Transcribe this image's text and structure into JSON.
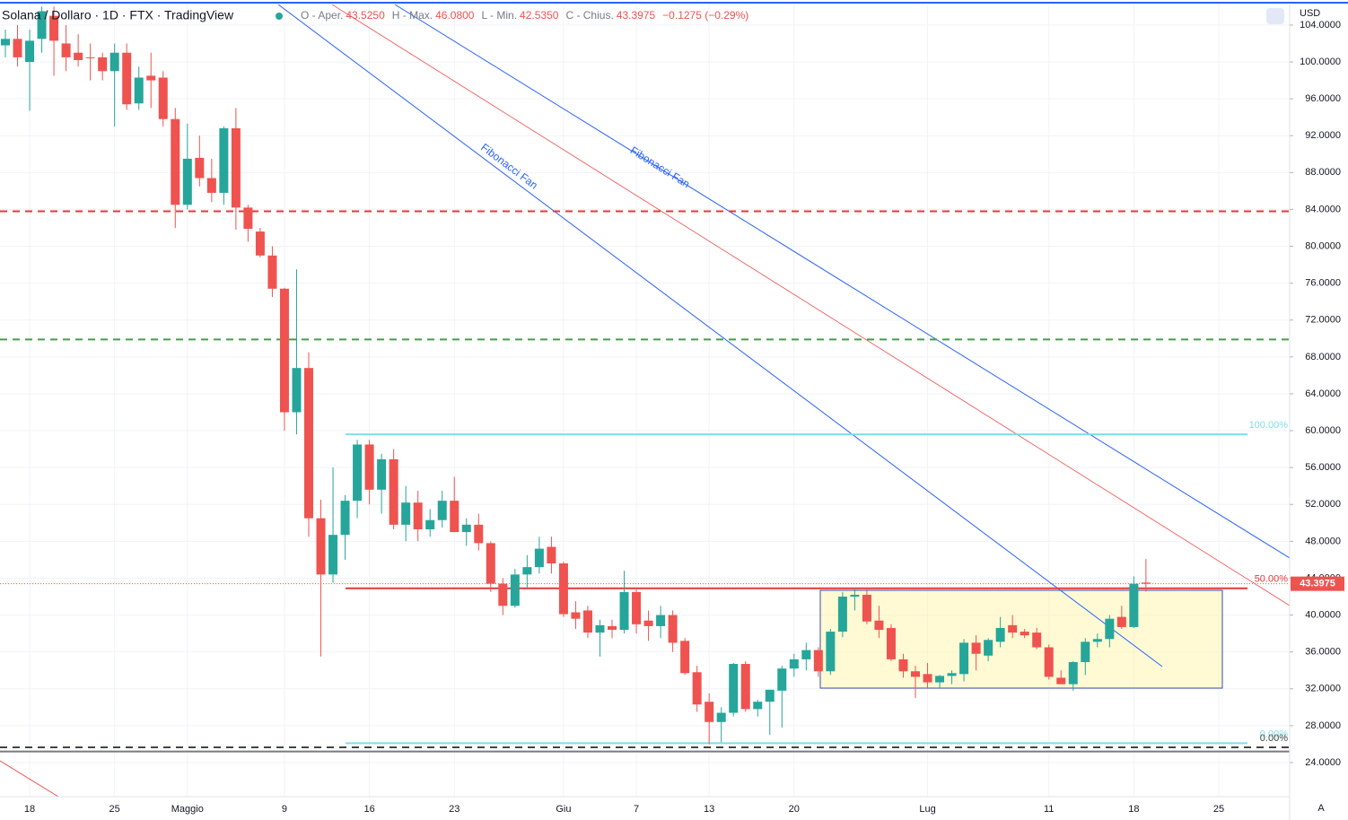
{
  "chart_data": {
    "type": "candlestick",
    "title": "Solana / Dollaro · 1D · FTX · TradingView",
    "readout": [
      {
        "label": "O - Aper.",
        "value": "43.5250"
      },
      {
        "label": "H - Max.",
        "value": "46.0800"
      },
      {
        "label": "L - Min.",
        "value": "42.5350"
      },
      {
        "label": "C - Chius.",
        "value": "43.3975"
      }
    ],
    "change": "−0.1275 (−0.29%)",
    "currency": "USD",
    "scale_mode": "A",
    "categories": [
      null,
      null,
      "18",
      null,
      null,
      null,
      null,
      null,
      null,
      "25",
      null,
      null,
      null,
      null,
      null,
      "Maggio",
      null,
      null,
      null,
      null,
      null,
      null,
      null,
      "9",
      null,
      null,
      null,
      null,
      null,
      null,
      "16",
      null,
      null,
      null,
      null,
      null,
      null,
      "23",
      null,
      null,
      null,
      null,
      null,
      null,
      null,
      null,
      "Giu",
      null,
      null,
      null,
      null,
      null,
      "7",
      null,
      null,
      null,
      null,
      null,
      "13",
      null,
      null,
      null,
      null,
      null,
      null,
      "20",
      null,
      null,
      null,
      null,
      null,
      null,
      null,
      null,
      null,
      null,
      "Lug",
      null,
      null,
      null,
      null,
      null,
      null,
      null,
      null,
      null,
      "11",
      null,
      null,
      null,
      null,
      null,
      null,
      "18",
      null,
      null,
      null,
      null,
      null,
      null,
      "25"
    ],
    "open": [
      101.8,
      102.5,
      100,
      102.5,
      105,
      102,
      101,
      100.5,
      100.5,
      99,
      101,
      95.5,
      98.5,
      98.3,
      93.8,
      84.5,
      89.6,
      87.4,
      85.8,
      92.8,
      84.2,
      81.6,
      79,
      75.4,
      62,
      66.8,
      50.5,
      44.4,
      48.7,
      52.4,
      58.5,
      53.6,
      56.9,
      49.8,
      52.2,
      49.3,
      50.3,
      52.4,
      49,
      49.8,
      47.8,
      43.4,
      41,
      44.4,
      45.2,
      47.4,
      45.6,
      40.3,
      40.5,
      38.1,
      38.8,
      38.4,
      42.5,
      39.4,
      38.8,
      40,
      37.2,
      33.8,
      30.6,
      28.4,
      29.4,
      34.7,
      29.8,
      30.6,
      31.8,
      34.2,
      35.2,
      36.2,
      33.9,
      38.2,
      42,
      42.2,
      39.4,
      38.6,
      35.2,
      33.9,
      33.6,
      32.7,
      33.4,
      33.6,
      37,
      35.6,
      37.1,
      38.9,
      38.2,
      38.1,
      36.5,
      33.2,
      32.5,
      34.9,
      37.1,
      37.4,
      39.8,
      38.7,
      43.525,
      null,
      null,
      null,
      null,
      null,
      null
    ],
    "high": [
      103.5,
      104,
      103.5,
      106,
      106,
      104,
      103,
      102,
      101,
      102,
      102,
      99.5,
      101,
      99,
      95,
      93.3,
      92,
      89.5,
      93,
      95,
      84.5,
      82,
      80,
      75.5,
      77.5,
      68.5,
      52.5,
      56,
      53,
      59,
      59,
      57.5,
      58,
      54,
      53.5,
      51.5,
      53.5,
      55,
      50.5,
      51,
      48,
      44,
      45,
      46.5,
      48.5,
      48.5,
      45.8,
      41.5,
      41,
      39.5,
      39.5,
      44.8,
      43,
      40.5,
      41,
      40.5,
      37.5,
      34.5,
      31.5,
      30,
      34.8,
      35,
      30.8,
      31.8,
      34.5,
      35.8,
      37,
      36.5,
      38.5,
      42.5,
      43,
      43,
      41,
      39,
      35.8,
      34.5,
      34.8,
      33.5,
      34,
      37.4,
      37.8,
      37.5,
      39.8,
      40,
      38.5,
      38.6,
      36.8,
      34,
      35,
      37.5,
      38,
      40,
      41,
      44.2,
      46.08,
      null,
      null,
      null,
      null,
      null,
      null
    ],
    "low": [
      100.5,
      99.5,
      94.7,
      101,
      98.5,
      99,
      99.5,
      98,
      98,
      93,
      94.8,
      94.8,
      95,
      93,
      82,
      84,
      86.5,
      84.8,
      84.5,
      81.8,
      80.5,
      78.8,
      74.5,
      60,
      59.6,
      48.5,
      35.5,
      43.5,
      46,
      50.5,
      52,
      51,
      49.3,
      48,
      48,
      48.5,
      49.5,
      49,
      47.5,
      47,
      42.5,
      40,
      40.8,
      43,
      44.5,
      44.5,
      39.8,
      38.5,
      37.5,
      35.5,
      37.5,
      38,
      38,
      37.2,
      37.5,
      36,
      33.5,
      29.5,
      26,
      26.2,
      29,
      29.5,
      29,
      27,
      27.8,
      33.3,
      34,
      33.3,
      33.5,
      37.6,
      40.5,
      39,
      37.5,
      35,
      33.2,
      31,
      32,
      32,
      32.5,
      32.8,
      34,
      35,
      36.5,
      37.5,
      37.5,
      36.3,
      33,
      32.5,
      31.8,
      33.5,
      36.5,
      36.5,
      38.5,
      38.6,
      42.535,
      null,
      null,
      null,
      null,
      null,
      null
    ],
    "close": [
      102.5,
      100.5,
      102.3,
      105.5,
      102.3,
      100.5,
      100.2,
      100.4,
      99,
      101,
      95.4,
      98.3,
      98,
      93.8,
      84.5,
      89.5,
      87.4,
      85.8,
      92.8,
      84.2,
      81.9,
      79,
      75.4,
      62,
      66.8,
      50.5,
      44.4,
      48.7,
      52.4,
      58.5,
      53.6,
      56.9,
      49.8,
      52.2,
      49.3,
      50.3,
      52.4,
      49,
      49.8,
      47.8,
      43.4,
      41,
      44.4,
      45.2,
      47.2,
      45.6,
      40.1,
      39.6,
      38.1,
      38.9,
      38.4,
      42.5,
      39,
      38.8,
      40,
      37,
      33.7,
      30.3,
      28.4,
      29.4,
      34.7,
      29.8,
      30.6,
      31.9,
      34.2,
      35.2,
      36.2,
      33.9,
      38.2,
      42,
      42.2,
      39.3,
      38.4,
      35.2,
      33.9,
      33.3,
      32.7,
      33.4,
      33.7,
      37,
      35.8,
      37.3,
      38.6,
      38.1,
      37.8,
      36.5,
      33.3,
      32.5,
      34.9,
      37.1,
      37.4,
      39.6,
      38.7,
      43.4,
      43.3975,
      null,
      null,
      null,
      null,
      null,
      null
    ],
    "up_color": "#26a69a",
    "down_color": "#ef5350",
    "ylim": [
      20.3,
      106.23
    ],
    "yticks": [
      {
        "value": 24,
        "label": "24.0000"
      },
      {
        "value": 28,
        "label": "28.0000"
      },
      {
        "value": 32,
        "label": "32.0000"
      },
      {
        "value": 36,
        "label": "36.0000"
      },
      {
        "value": 40,
        "label": "40.0000"
      },
      {
        "value": 44,
        "label": "44.0000"
      },
      {
        "value": 48,
        "label": "48.0000"
      },
      {
        "value": 52,
        "label": "52.0000"
      },
      {
        "value": 56,
        "label": "56.0000"
      },
      {
        "value": 60,
        "label": "60.0000"
      },
      {
        "value": 64,
        "label": "64.0000"
      },
      {
        "value": 68,
        "label": "68.0000"
      },
      {
        "value": 72,
        "label": "72.0000"
      },
      {
        "value": 76,
        "label": "76.0000"
      },
      {
        "value": 80,
        "label": "80.0000"
      },
      {
        "value": 84,
        "label": "84.0000"
      },
      {
        "value": 88,
        "label": "88.0000"
      },
      {
        "value": 92,
        "label": "92.0000"
      },
      {
        "value": 96,
        "label": "96.0000"
      },
      {
        "value": 100,
        "label": "100.0000"
      },
      {
        "value": 104,
        "label": "104.0000"
      }
    ],
    "grid": true,
    "hlines": [
      {
        "value": 83.8,
        "color": "#e53935",
        "dashed": true
      },
      {
        "value": 69.9,
        "color": "#43a047",
        "dashed": true
      },
      {
        "value": 25.2,
        "color": "#787b86",
        "dashed": false
      }
    ],
    "fib_levels": [
      {
        "value": 59.6,
        "label": "100.00%",
        "color": "#80deea"
      },
      {
        "value": 42.9,
        "label": "50.00%",
        "color": "#e53935"
      },
      {
        "value": 26.1,
        "label": "0.00%",
        "color": "#80deea"
      },
      {
        "value": 25.65,
        "label": "0.00%",
        "color": "#444444"
      }
    ],
    "last_price": {
      "value": 43.3975,
      "label": "43.3975",
      "color": "#ef5350"
    },
    "annotations": [
      "Fibonacci Fan",
      "Fibonacci Fan"
    ]
  }
}
